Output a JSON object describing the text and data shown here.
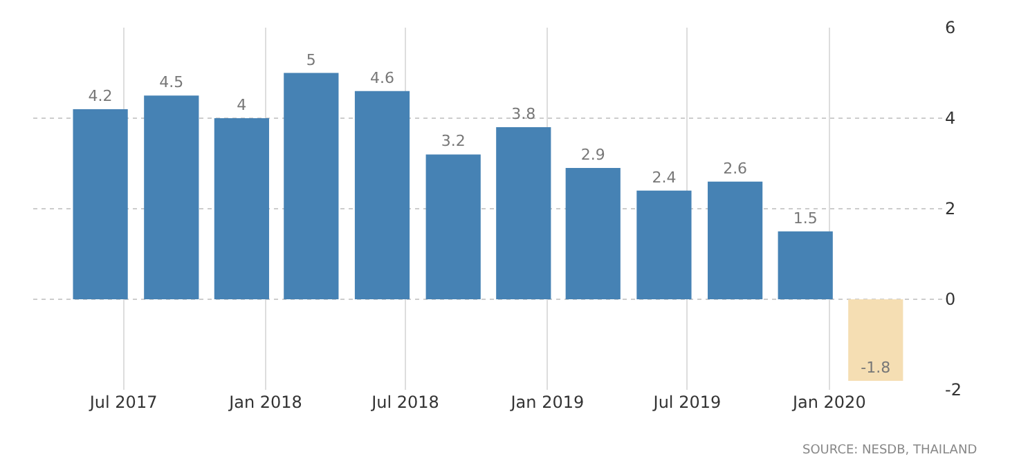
{
  "chart_data": {
    "type": "bar",
    "x": [
      "2017-06-01",
      "2017-09-01",
      "2017-12-01",
      "2018-03-01",
      "2018-06-01",
      "2018-09-01",
      "2018-12-01",
      "2019-03-01",
      "2019-06-01",
      "2019-09-01",
      "2019-12-01",
      "2020-03-01"
    ],
    "values": [
      4.2,
      4.5,
      4,
      5,
      4.6,
      3.2,
      3.8,
      2.9,
      2.4,
      2.6,
      1.5,
      -1.8
    ],
    "colors": [
      "#4682b4",
      "#4682b4",
      "#4682b4",
      "#4682b4",
      "#4682b4",
      "#4682b4",
      "#4682b4",
      "#4682b4",
      "#4682b4",
      "#4682b4",
      "#4682b4",
      "#f5deb3"
    ],
    "data_labels": true,
    "xlim": [
      "2017-03-06",
      "2020-05-28"
    ],
    "xticks": [
      {
        "value": "2017-07-01",
        "label": "Jul 2017"
      },
      {
        "value": "2018-01-01",
        "label": "Jan 2018"
      },
      {
        "value": "2018-07-01",
        "label": "Jul 2018"
      },
      {
        "value": "2019-01-01",
        "label": "Jan 2019"
      },
      {
        "value": "2019-07-01",
        "label": "Jul 2019"
      },
      {
        "value": "2020-01-01",
        "label": "Jan 2020"
      }
    ],
    "ylim": [
      -2,
      6
    ],
    "yticks": [
      -2,
      0,
      2,
      4,
      6
    ],
    "grid": true,
    "annotations": [
      "SOURCE: NESDB, THAILAND"
    ]
  }
}
